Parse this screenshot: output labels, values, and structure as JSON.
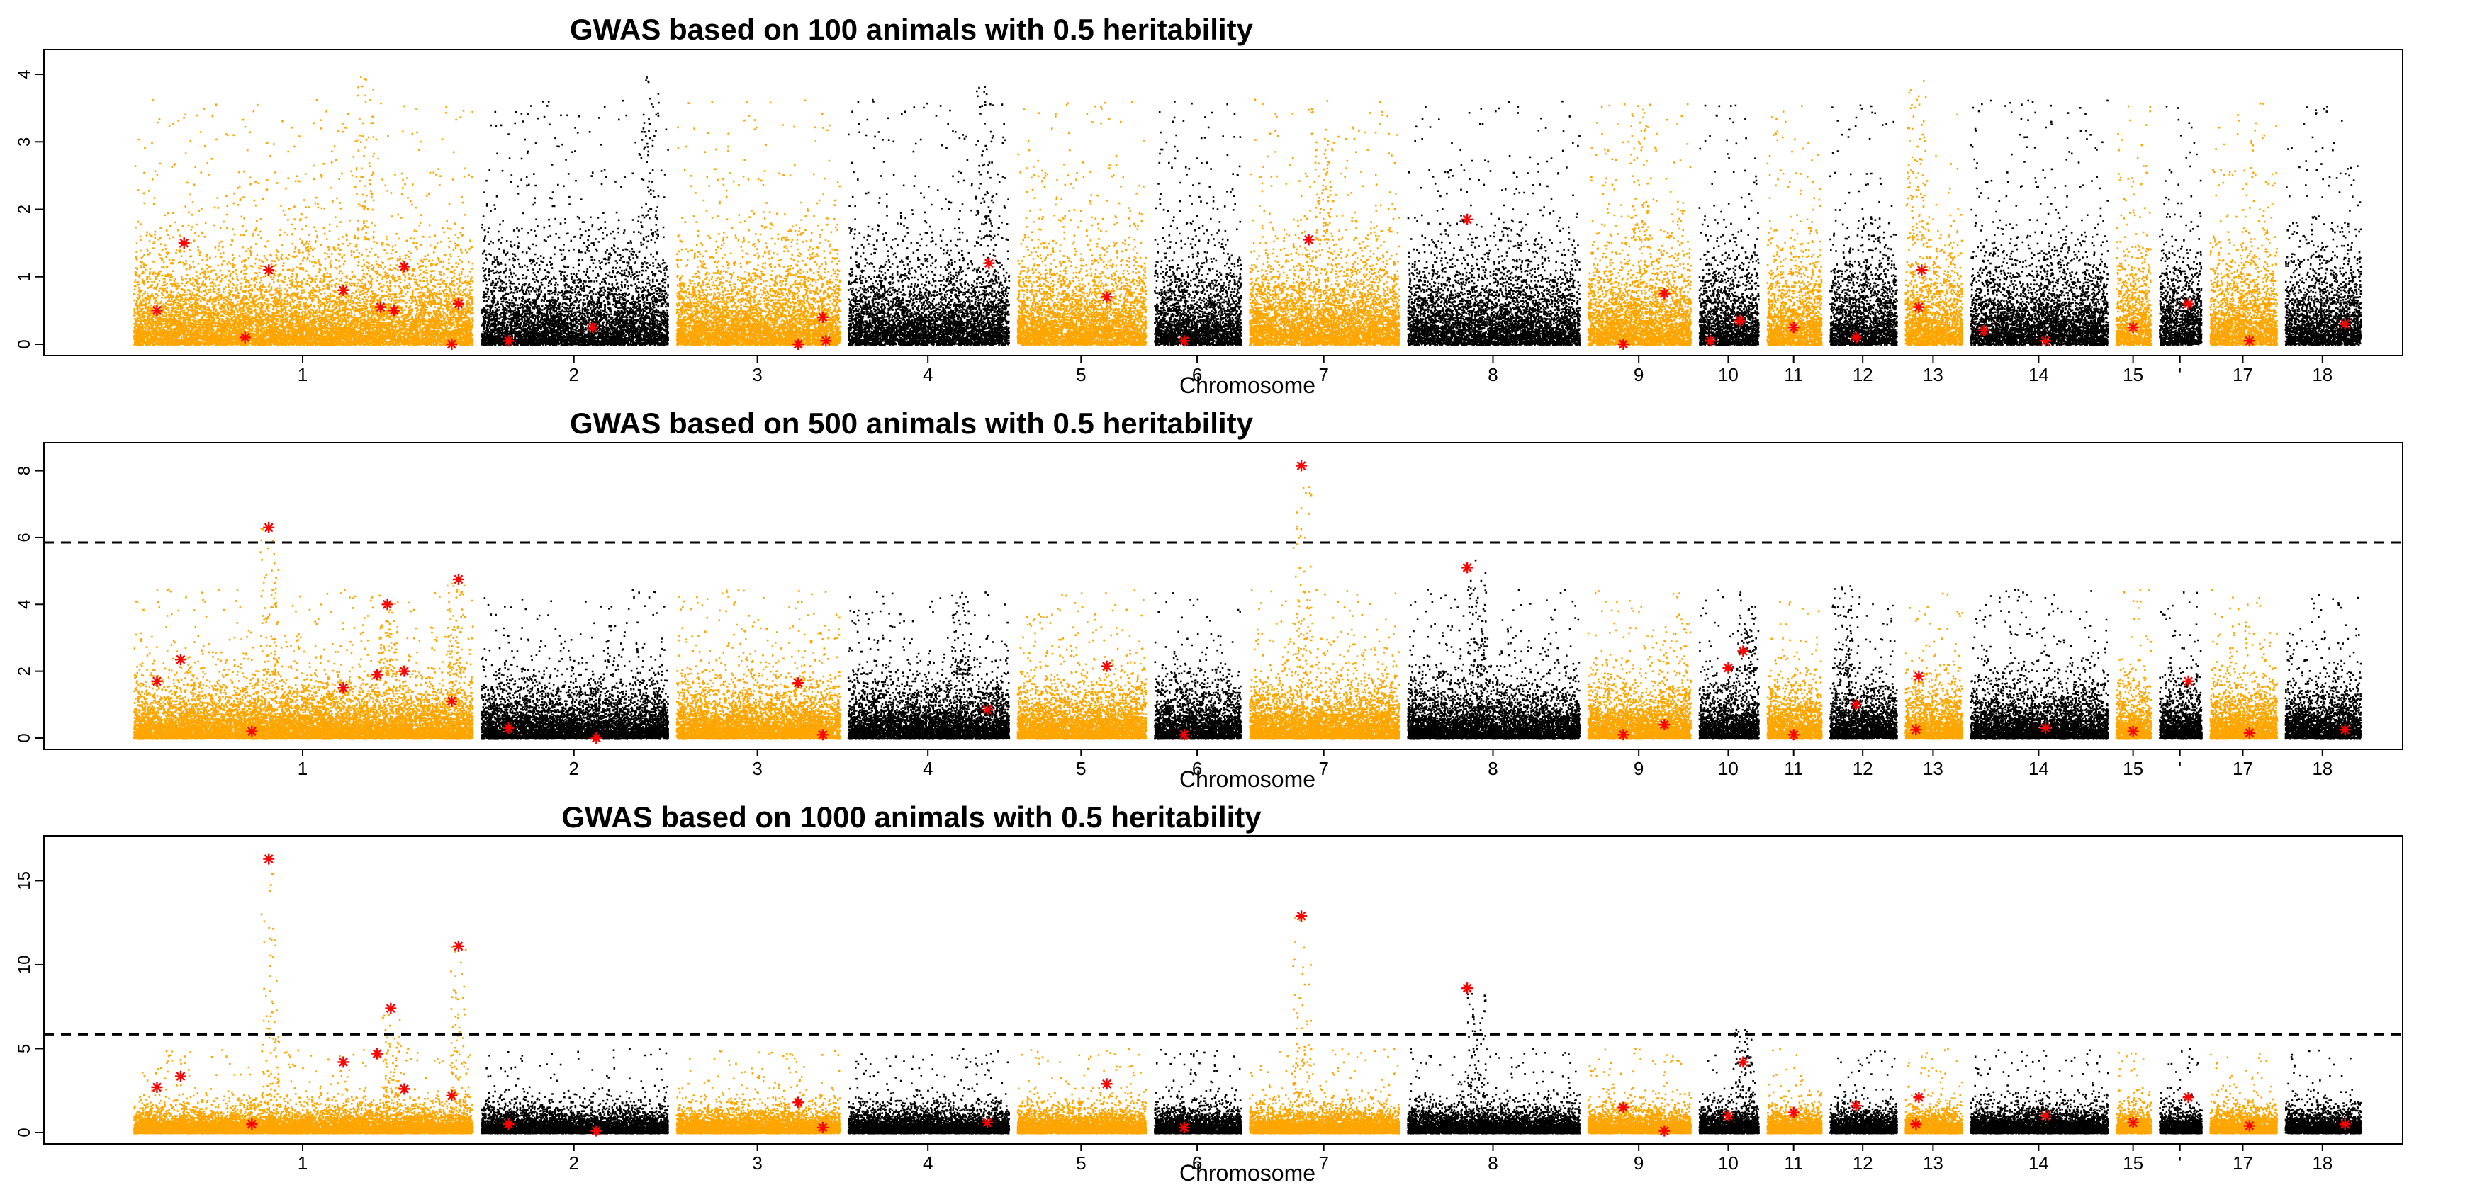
{
  "chart_data": [
    {
      "type": "scatter",
      "subtype": "manhattan",
      "title": "GWAS based on 100 animals with 0.5 heritability",
      "xlabel": "Chromosome",
      "ylabel": "",
      "ylim": [
        0,
        4.2
      ],
      "yticks": [
        0,
        1,
        2,
        3,
        4
      ],
      "threshold": null,
      "noise": {
        "base": 0.75,
        "cap": 2.6,
        "tail": 0.012
      },
      "highlight_color": "#ff0000",
      "peaks": [
        {
          "chrom": 2,
          "pos": 0.9,
          "value": 4.05
        },
        {
          "chrom": 4,
          "pos": 0.85,
          "value": 3.85
        },
        {
          "chrom": 7,
          "pos": 0.5,
          "value": 3.05
        },
        {
          "chrom": 13,
          "pos": 0.2,
          "value": 4.1
        },
        {
          "chrom": 1,
          "pos": 0.68,
          "value": 4.0
        },
        {
          "chrom": 9,
          "pos": 0.5,
          "value": 3.6
        }
      ],
      "highlights": [
        {
          "chrom": 1,
          "pos": 0.07,
          "value": 0.5
        },
        {
          "chrom": 1,
          "pos": 0.15,
          "value": 1.5
        },
        {
          "chrom": 1,
          "pos": 0.33,
          "value": 0.1
        },
        {
          "chrom": 1,
          "pos": 0.4,
          "value": 1.1
        },
        {
          "chrom": 1,
          "pos": 0.62,
          "value": 0.8
        },
        {
          "chrom": 1,
          "pos": 0.73,
          "value": 0.55
        },
        {
          "chrom": 1,
          "pos": 0.77,
          "value": 0.5
        },
        {
          "chrom": 1,
          "pos": 0.8,
          "value": 1.15
        },
        {
          "chrom": 1,
          "pos": 0.96,
          "value": 0.6
        },
        {
          "chrom": 1,
          "pos": 0.94,
          "value": 0.0
        },
        {
          "chrom": 2,
          "pos": 0.15,
          "value": 0.05
        },
        {
          "chrom": 2,
          "pos": 0.6,
          "value": 0.25
        },
        {
          "chrom": 3,
          "pos": 0.75,
          "value": 0.0
        },
        {
          "chrom": 3,
          "pos": 0.9,
          "value": 0.4
        },
        {
          "chrom": 3,
          "pos": 0.92,
          "value": 0.05
        },
        {
          "chrom": 4,
          "pos": 0.88,
          "value": 1.2
        },
        {
          "chrom": 5,
          "pos": 0.7,
          "value": 0.7
        },
        {
          "chrom": 6,
          "pos": 0.35,
          "value": 0.05
        },
        {
          "chrom": 7,
          "pos": 0.4,
          "value": 1.55
        },
        {
          "chrom": 8,
          "pos": 0.35,
          "value": 1.85
        },
        {
          "chrom": 9,
          "pos": 0.35,
          "value": 0.0
        },
        {
          "chrom": 9,
          "pos": 0.75,
          "value": 0.75
        },
        {
          "chrom": 10,
          "pos": 0.2,
          "value": 0.05
        },
        {
          "chrom": 10,
          "pos": 0.7,
          "value": 0.35
        },
        {
          "chrom": 11,
          "pos": 0.5,
          "value": 0.25
        },
        {
          "chrom": 12,
          "pos": 0.4,
          "value": 0.1
        },
        {
          "chrom": 13,
          "pos": 0.3,
          "value": 1.1
        },
        {
          "chrom": 13,
          "pos": 0.25,
          "value": 0.55
        },
        {
          "chrom": 14,
          "pos": 0.1,
          "value": 0.2
        },
        {
          "chrom": 14,
          "pos": 0.55,
          "value": 0.05
        },
        {
          "chrom": 15,
          "pos": 0.5,
          "value": 0.25
        },
        {
          "chrom": 16,
          "pos": 0.7,
          "value": 0.6
        },
        {
          "chrom": 17,
          "pos": 0.6,
          "value": 0.05
        },
        {
          "chrom": 18,
          "pos": 0.8,
          "value": 0.3
        }
      ]
    },
    {
      "type": "scatter",
      "subtype": "manhattan",
      "title": "GWAS based on 500 animals with 0.5 heritability",
      "xlabel": "Chromosome",
      "ylabel": "",
      "ylim": [
        0,
        8.5
      ],
      "yticks": [
        0,
        2,
        4,
        6,
        8
      ],
      "threshold": 5.85,
      "noise": {
        "base": 0.95,
        "cap": 3.2,
        "tail": 0.01
      },
      "highlight_color": "#ff0000",
      "peaks": [
        {
          "chrom": 1,
          "pos": 0.4,
          "value": 6.3
        },
        {
          "chrom": 1,
          "pos": 0.75,
          "value": 4.0
        },
        {
          "chrom": 1,
          "pos": 0.95,
          "value": 4.7
        },
        {
          "chrom": 4,
          "pos": 0.7,
          "value": 4.1
        },
        {
          "chrom": 7,
          "pos": 0.35,
          "value": 8.15
        },
        {
          "chrom": 8,
          "pos": 0.4,
          "value": 5.5
        },
        {
          "chrom": 10,
          "pos": 0.8,
          "value": 4.5
        },
        {
          "chrom": 12,
          "pos": 0.2,
          "value": 4.6
        }
      ],
      "highlights": [
        {
          "chrom": 1,
          "pos": 0.07,
          "value": 1.7
        },
        {
          "chrom": 1,
          "pos": 0.14,
          "value": 2.35
        },
        {
          "chrom": 1,
          "pos": 0.35,
          "value": 0.2
        },
        {
          "chrom": 1,
          "pos": 0.4,
          "value": 6.3
        },
        {
          "chrom": 1,
          "pos": 0.62,
          "value": 1.5
        },
        {
          "chrom": 1,
          "pos": 0.72,
          "value": 1.9
        },
        {
          "chrom": 1,
          "pos": 0.75,
          "value": 4.0
        },
        {
          "chrom": 1,
          "pos": 0.8,
          "value": 2.0
        },
        {
          "chrom": 1,
          "pos": 0.94,
          "value": 1.1
        },
        {
          "chrom": 1,
          "pos": 0.96,
          "value": 4.75
        },
        {
          "chrom": 2,
          "pos": 0.15,
          "value": 0.3
        },
        {
          "chrom": 2,
          "pos": 0.62,
          "value": 0.0
        },
        {
          "chrom": 3,
          "pos": 0.75,
          "value": 1.65
        },
        {
          "chrom": 3,
          "pos": 0.9,
          "value": 0.1
        },
        {
          "chrom": 4,
          "pos": 0.87,
          "value": 0.85
        },
        {
          "chrom": 5,
          "pos": 0.7,
          "value": 2.15
        },
        {
          "chrom": 6,
          "pos": 0.35,
          "value": 0.1
        },
        {
          "chrom": 7,
          "pos": 0.35,
          "value": 8.15
        },
        {
          "chrom": 8,
          "pos": 0.35,
          "value": 5.1
        },
        {
          "chrom": 9,
          "pos": 0.35,
          "value": 0.1
        },
        {
          "chrom": 9,
          "pos": 0.75,
          "value": 0.4
        },
        {
          "chrom": 10,
          "pos": 0.5,
          "value": 2.1
        },
        {
          "chrom": 10,
          "pos": 0.75,
          "value": 2.6
        },
        {
          "chrom": 11,
          "pos": 0.5,
          "value": 0.1
        },
        {
          "chrom": 12,
          "pos": 0.4,
          "value": 1.0
        },
        {
          "chrom": 13,
          "pos": 0.25,
          "value": 1.85
        },
        {
          "chrom": 13,
          "pos": 0.2,
          "value": 0.25
        },
        {
          "chrom": 14,
          "pos": 0.55,
          "value": 0.3
        },
        {
          "chrom": 15,
          "pos": 0.5,
          "value": 0.2
        },
        {
          "chrom": 16,
          "pos": 0.7,
          "value": 1.7
        },
        {
          "chrom": 17,
          "pos": 0.6,
          "value": 0.15
        },
        {
          "chrom": 18,
          "pos": 0.8,
          "value": 0.25
        }
      ]
    },
    {
      "type": "scatter",
      "subtype": "manhattan",
      "title": "GWAS based on 1000 animals with 0.5 heritability",
      "xlabel": "Chromosome",
      "ylabel": "",
      "ylim": [
        0,
        17
      ],
      "yticks": [
        0,
        5,
        10,
        15
      ],
      "threshold": 5.85,
      "noise": {
        "base": 0.85,
        "cap": 3.6,
        "tail": 0.008
      },
      "highlight_color": "#ff0000",
      "peaks": [
        {
          "chrom": 1,
          "pos": 0.4,
          "value": 16.3
        },
        {
          "chrom": 1,
          "pos": 0.76,
          "value": 7.4
        },
        {
          "chrom": 1,
          "pos": 0.96,
          "value": 11.1
        },
        {
          "chrom": 7,
          "pos": 0.35,
          "value": 12.9
        },
        {
          "chrom": 8,
          "pos": 0.4,
          "value": 8.6
        },
        {
          "chrom": 10,
          "pos": 0.75,
          "value": 6.2
        }
      ],
      "highlights": [
        {
          "chrom": 1,
          "pos": 0.07,
          "value": 2.7
        },
        {
          "chrom": 1,
          "pos": 0.14,
          "value": 3.35
        },
        {
          "chrom": 1,
          "pos": 0.35,
          "value": 0.5
        },
        {
          "chrom": 1,
          "pos": 0.4,
          "value": 16.3
        },
        {
          "chrom": 1,
          "pos": 0.62,
          "value": 4.2
        },
        {
          "chrom": 1,
          "pos": 0.72,
          "value": 4.7
        },
        {
          "chrom": 1,
          "pos": 0.76,
          "value": 7.4
        },
        {
          "chrom": 1,
          "pos": 0.8,
          "value": 2.6
        },
        {
          "chrom": 1,
          "pos": 0.94,
          "value": 2.2
        },
        {
          "chrom": 1,
          "pos": 0.96,
          "value": 11.1
        },
        {
          "chrom": 2,
          "pos": 0.15,
          "value": 0.5
        },
        {
          "chrom": 2,
          "pos": 0.62,
          "value": 0.1
        },
        {
          "chrom": 3,
          "pos": 0.75,
          "value": 1.8
        },
        {
          "chrom": 3,
          "pos": 0.9,
          "value": 0.3
        },
        {
          "chrom": 4,
          "pos": 0.87,
          "value": 0.6
        },
        {
          "chrom": 5,
          "pos": 0.7,
          "value": 2.9
        },
        {
          "chrom": 6,
          "pos": 0.35,
          "value": 0.3
        },
        {
          "chrom": 7,
          "pos": 0.35,
          "value": 12.9
        },
        {
          "chrom": 8,
          "pos": 0.35,
          "value": 8.6
        },
        {
          "chrom": 9,
          "pos": 0.35,
          "value": 1.5
        },
        {
          "chrom": 9,
          "pos": 0.75,
          "value": 0.1
        },
        {
          "chrom": 10,
          "pos": 0.5,
          "value": 1.0
        },
        {
          "chrom": 10,
          "pos": 0.75,
          "value": 4.2
        },
        {
          "chrom": 11,
          "pos": 0.5,
          "value": 1.2
        },
        {
          "chrom": 12,
          "pos": 0.4,
          "value": 1.6
        },
        {
          "chrom": 13,
          "pos": 0.25,
          "value": 2.1
        },
        {
          "chrom": 13,
          "pos": 0.2,
          "value": 0.5
        },
        {
          "chrom": 14,
          "pos": 0.55,
          "value": 1.0
        },
        {
          "chrom": 15,
          "pos": 0.5,
          "value": 0.6
        },
        {
          "chrom": 16,
          "pos": 0.7,
          "value": 2.1
        },
        {
          "chrom": 17,
          "pos": 0.6,
          "value": 0.4
        },
        {
          "chrom": 18,
          "pos": 0.8,
          "value": 0.5
        }
      ]
    }
  ],
  "chromosomes": [
    {
      "id": 1,
      "label": "1",
      "length": 274,
      "color": "#ffa500"
    },
    {
      "id": 2,
      "label": "2",
      "length": 151,
      "color": "#000000"
    },
    {
      "id": 3,
      "label": "3",
      "length": 132,
      "color": "#ffa500"
    },
    {
      "id": 4,
      "label": "4",
      "length": 130,
      "color": "#000000"
    },
    {
      "id": 5,
      "label": "5",
      "length": 104,
      "color": "#ffa500"
    },
    {
      "id": 6,
      "label": "6",
      "length": 70,
      "color": "#000000"
    },
    {
      "id": 7,
      "label": "7",
      "length": 121,
      "color": "#ffa500"
    },
    {
      "id": 8,
      "label": "8",
      "length": 139,
      "color": "#000000"
    },
    {
      "id": 9,
      "label": "9",
      "length": 83,
      "color": "#ffa500"
    },
    {
      "id": 10,
      "label": "10",
      "length": 48,
      "color": "#000000"
    },
    {
      "id": 11,
      "label": "11",
      "length": 44,
      "color": "#ffa500"
    },
    {
      "id": 12,
      "label": "12",
      "length": 54,
      "color": "#000000"
    },
    {
      "id": 13,
      "label": "13",
      "length": 46,
      "color": "#ffa500"
    },
    {
      "id": 14,
      "label": "14",
      "length": 111,
      "color": "#000000"
    },
    {
      "id": 15,
      "label": "15",
      "length": 28,
      "color": "#ffa500"
    },
    {
      "id": 16,
      "label": "'",
      "length": 34,
      "color": "#000000"
    },
    {
      "id": 17,
      "label": "17",
      "length": 54,
      "color": "#ffa500"
    },
    {
      "id": 18,
      "label": "18",
      "length": 61,
      "color": "#000000"
    }
  ]
}
